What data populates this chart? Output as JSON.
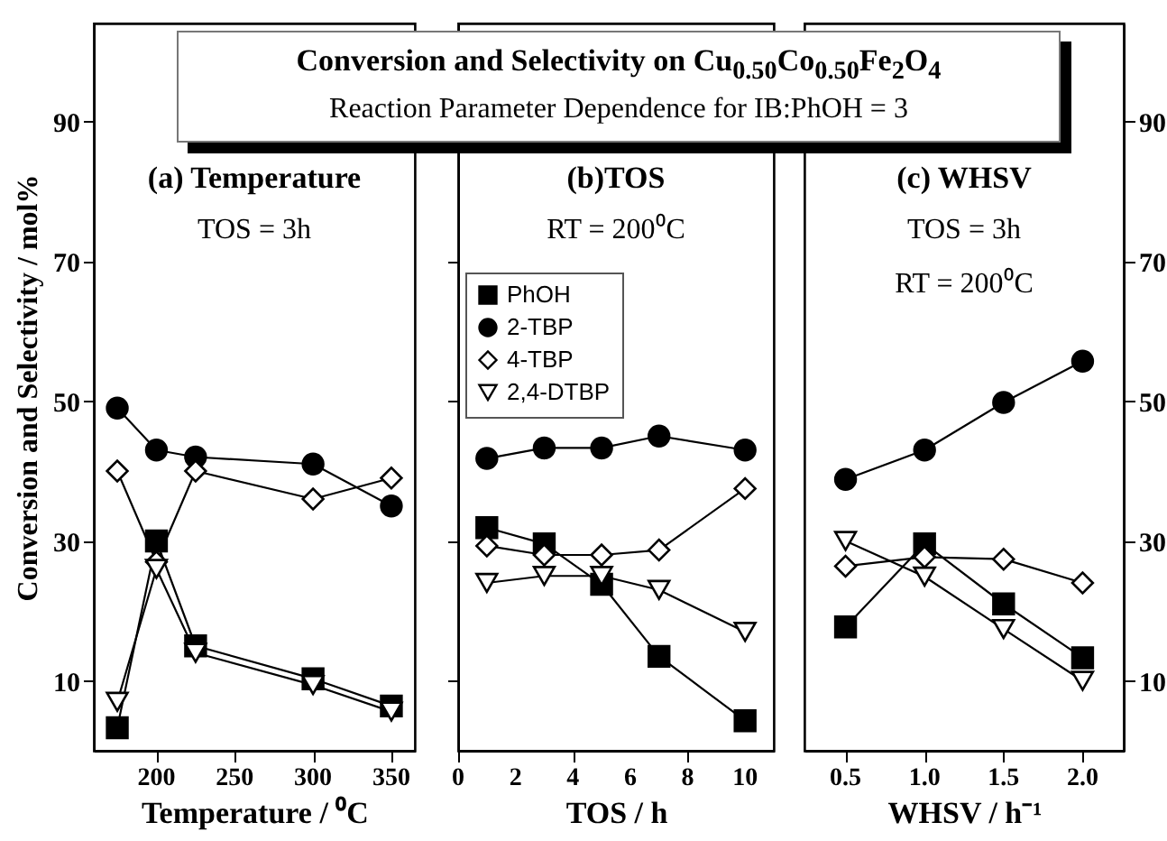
{
  "chart_data": [
    {
      "type": "line",
      "title": "Conversion and Selectivity on Cu$_{0.50}$Co$_{0.50}$Fe$_{2}$O$_{4}$",
      "subtitle": "Reaction Parameter Dependence for IB:PhOH = 3",
      "xlabel": "Temperature / ⁰C",
      "ylabel": "Conversion and  Selectivity / mol%",
      "annotations": [
        "(a) Temperature",
        "TOS = 3h"
      ],
      "x": [
        175,
        200,
        225,
        300,
        350
      ],
      "xlim": [
        160,
        365
      ],
      "xticks": [
        200,
        250,
        300,
        350
      ],
      "ylim": [
        0,
        104
      ],
      "yticks": [
        10,
        30,
        50,
        70,
        90
      ],
      "marker": "circle",
      "line_style": "solid",
      "series": [
        {
          "color": "#000000",
          "marker": "square",
          "values": [
            3.3,
            30,
            15,
            10.3,
            6.4
          ]
        },
        {
          "color": "#000000",
          "marker": "circle",
          "values": [
            49,
            43,
            42,
            41,
            35
          ]
        },
        {
          "color": "#000000",
          "marker": "diamond",
          "values": [
            40,
            27,
            40,
            36,
            39
          ]
        },
        {
          "color": "#000000",
          "marker": "triangle",
          "values": [
            7,
            26,
            14,
            9.4,
            5.6
          ]
        }
      ]
    },
    {
      "type": "line",
      "xlabel": "TOS / h",
      "annotations": [
        "(b)TOS",
        "RT = 200⁰C"
      ],
      "legend": "top left",
      "tick_labels": "x",
      "x": [
        1,
        3,
        5,
        7,
        10
      ],
      "xlim": [
        0,
        11
      ],
      "xticks": [
        0,
        2,
        4,
        6,
        8,
        10
      ],
      "ylim": [
        0,
        104
      ],
      "yticks": [
        10,
        30,
        50,
        70,
        90
      ],
      "marker": "circle",
      "line_style": "solid",
      "series": [
        {
          "name": "PhOH",
          "color": "#000000",
          "marker": "square",
          "values": [
            31.9,
            29.6,
            23.8,
            13.5,
            4.3
          ]
        },
        {
          "name": "2-TBP",
          "color": "#000000",
          "marker": "circle",
          "values": [
            41.8,
            43.3,
            43.3,
            45,
            43
          ]
        },
        {
          "name": "4-TBP",
          "color": "#000000",
          "marker": "diamond",
          "values": [
            29.3,
            28,
            28,
            28.7,
            37.5
          ]
        },
        {
          "name": "2,4-DTBP",
          "color": "#000000",
          "marker": "triangle",
          "values": [
            24,
            25,
            25,
            23,
            17
          ]
        }
      ]
    },
    {
      "type": "line",
      "xlabel": "WHSV / h⁻¹",
      "annotations": [
        "(c) WHSV",
        "TOS = 3h",
        "RT = 200⁰C"
      ],
      "x": [
        0.5,
        1.0,
        1.5,
        2.0
      ],
      "xlim": [
        0.24,
        2.26
      ],
      "xticks": [
        {
          "value": 0.5,
          "label": "0.5"
        },
        {
          "value": 1,
          "label": "1.0"
        },
        {
          "value": 1.5,
          "label": "1.5"
        },
        {
          "value": 2,
          "label": "2.0"
        }
      ],
      "ylim": [
        0,
        104
      ],
      "yticks": [
        10,
        30,
        50,
        70,
        90
      ],
      "marker": "circle",
      "line_style": "solid",
      "series": [
        {
          "color": "#000000",
          "marker": "square",
          "values": [
            17.7,
            29.6,
            21,
            13.3
          ]
        },
        {
          "color": "#000000",
          "marker": "circle",
          "values": [
            38.8,
            43,
            49.8,
            55.7
          ]
        },
        {
          "color": "#000000",
          "marker": "diamond",
          "values": [
            26.4,
            27.7,
            27.4,
            24
          ]
        },
        {
          "color": "#000000",
          "marker": "triangle",
          "values": [
            30,
            24.9,
            17.4,
            10
          ]
        }
      ]
    }
  ]
}
